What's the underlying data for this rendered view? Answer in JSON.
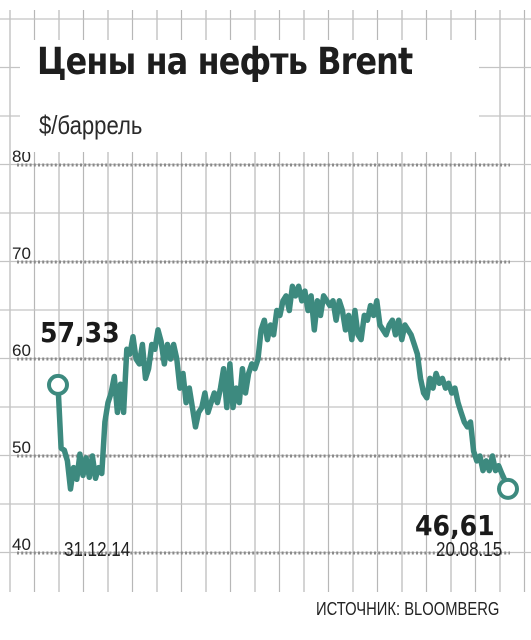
{
  "chart_data": {
    "type": "line",
    "title": "Цены на нефть Brent",
    "ylabel": "$/баррель",
    "xlabel": "",
    "source": "ИСТОЧНИК: BLOOMBERG",
    "ylim": [
      40,
      80
    ],
    "yticks": [
      "80",
      "70",
      "60",
      "50",
      "40"
    ],
    "xtick_labels": [
      "31.12.14",
      "20.08.15"
    ],
    "grid": true,
    "line_color": "#3d8a7f",
    "start_label": "57,33",
    "end_label": "46,61",
    "series": [
      {
        "values": [
          57.33,
          50.8,
          50.6,
          49.5,
          46.6,
          48.8,
          47.6,
          50.2,
          48.0,
          49.8,
          47.8,
          50.0,
          47.7,
          48.8,
          48.2,
          53.5,
          55.5,
          56.5,
          58.2,
          54.5,
          57.4,
          54.5,
          61.0,
          60.5,
          62.3,
          60.0,
          59.5,
          61.5,
          58.0,
          59.0,
          61.5,
          61.0,
          63.0,
          61.8,
          59.5,
          61.5,
          60.0,
          61.5,
          60.0,
          57.0,
          58.5,
          55.5,
          57.0,
          55.0,
          53.0,
          54.5,
          55.0,
          56.5,
          54.5,
          55.5,
          56.5,
          55.5,
          57.0,
          59.0,
          55.0,
          59.5,
          55.0,
          57.0,
          55.5,
          59.0,
          56.5,
          58.5,
          59.5,
          59.0,
          60.0,
          63.0,
          64.0,
          62.0,
          63.5,
          62.5,
          65.0,
          64.5,
          66.0,
          66.5,
          65.0,
          67.5,
          66.5,
          67.5,
          66.0,
          67.0,
          65.0,
          66.5,
          63.0,
          66.0,
          64.5,
          66.5,
          66.0,
          65.5,
          66.0,
          64.0,
          66.0,
          65.0,
          63.0,
          64.5,
          62.0,
          65.0,
          62.5,
          62.0,
          64.5,
          64.0,
          65.5,
          64.5,
          66.0,
          63.5,
          63.0,
          62.5,
          63.5,
          64.0,
          62.5,
          64.0,
          62.0,
          63.5,
          63.0,
          62.5,
          61.5,
          60.5,
          58.0,
          56.5,
          56.0,
          58.0,
          57.0,
          58.5,
          57.5,
          58.0,
          57.0,
          57.5,
          56.5,
          57.0,
          55.5,
          54.5,
          53.5,
          53.0,
          53.5,
          50.5,
          49.5,
          50.0,
          48.5,
          49.5,
          48.5,
          50.0,
          48.5,
          49.0,
          48.2,
          47.5,
          46.61
        ]
      }
    ]
  }
}
